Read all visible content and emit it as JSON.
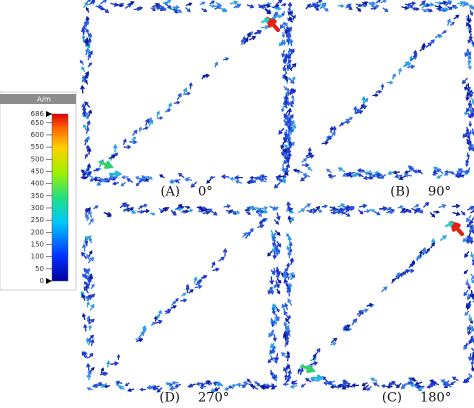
{
  "colorbar": {
    "unit": "A/m",
    "ticks": [
      686,
      650,
      600,
      550,
      500,
      450,
      400,
      350,
      300,
      250,
      200,
      150,
      100,
      50,
      0
    ]
  },
  "panels": [
    {
      "label": "(A)",
      "angle": "0°"
    },
    {
      "label": "(B)",
      "angle": "90°"
    },
    {
      "label": "(D)",
      "angle": "270°"
    },
    {
      "label": "(C)",
      "angle": "180°"
    }
  ]
}
